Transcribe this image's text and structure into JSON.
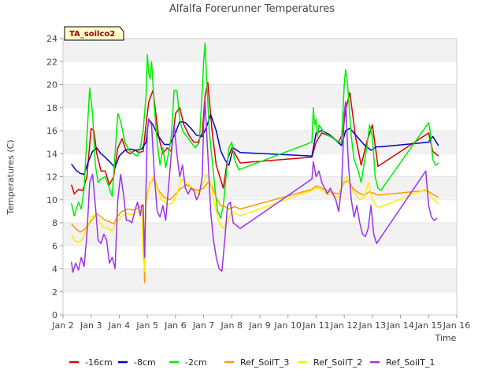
{
  "chart_data": {
    "type": "line",
    "title": "Alfalfa Forerunner Temperatures",
    "xlabel": "Time",
    "ylabel": "Temperatures (C)",
    "ylim": [
      0,
      24
    ],
    "xlim": [
      2,
      16
    ],
    "yticks": [
      0,
      2,
      4,
      6,
      8,
      10,
      12,
      14,
      16,
      18,
      20,
      22,
      24
    ],
    "xticks": [
      2,
      3,
      4,
      5,
      6,
      7,
      8,
      9,
      10,
      11,
      12,
      13,
      14,
      15,
      16
    ],
    "xticklabels": [
      "Jan 2",
      "Jan 3",
      "Jan 4",
      "Jan 5",
      "Jan 6",
      "Jan 7",
      "Jan 8",
      "Jan 9",
      "Jan 10",
      "Jan 11",
      "Jan 12",
      "Jan 13",
      "Jan 14",
      "Jan 15",
      "Jan 16"
    ],
    "grid": "horizontal-bands",
    "annotation": "TA_soilco2",
    "legend_position": "bottom",
    "series": [
      {
        "name": "-16cm",
        "color": "#dd0000",
        "x": [
          2.3,
          2.4,
          2.55,
          2.7,
          2.85,
          3.0,
          3.1,
          3.2,
          3.35,
          3.5,
          3.65,
          3.8,
          3.95,
          4.1,
          4.25,
          4.4,
          4.55,
          4.7,
          4.85,
          4.95,
          5.05,
          5.2,
          5.4,
          5.55,
          5.7,
          5.85,
          6.0,
          6.15,
          6.3,
          6.5,
          6.65,
          6.8,
          6.95,
          7.05,
          7.15,
          7.3,
          7.45,
          7.6,
          7.7,
          7.85,
          8.0,
          8.3,
          10.85,
          11.0,
          11.2,
          11.5,
          11.8,
          11.95,
          12.05,
          12.2,
          12.4,
          12.6,
          12.8,
          13.0,
          13.2,
          15.0,
          15.15,
          15.35
        ],
        "y": [
          11.3,
          10.5,
          10.9,
          10.8,
          12.0,
          16.2,
          16.0,
          14.0,
          12.5,
          12.5,
          11.3,
          12.0,
          14.5,
          15.3,
          14.2,
          14.0,
          14.3,
          14.1,
          14.2,
          16.5,
          18.5,
          19.5,
          15.5,
          14.0,
          14.5,
          14.2,
          17.5,
          18.0,
          16.5,
          15.5,
          15.0,
          15.0,
          15.8,
          19.0,
          20.2,
          16.0,
          13.0,
          11.8,
          11.0,
          13.5,
          14.5,
          13.2,
          13.7,
          15.0,
          15.8,
          15.5,
          15.0,
          15.8,
          17.8,
          19.3,
          15.5,
          13.0,
          15.0,
          16.5,
          12.9,
          15.8,
          14.2,
          13.8
        ]
      },
      {
        "name": "-8cm",
        "color": "#0000cc",
        "x": [
          2.3,
          2.45,
          2.6,
          2.75,
          2.9,
          3.05,
          3.2,
          3.35,
          3.5,
          3.7,
          3.85,
          4.0,
          4.2,
          4.4,
          4.6,
          4.8,
          4.95,
          5.05,
          5.2,
          5.4,
          5.6,
          5.8,
          6.0,
          6.15,
          6.35,
          6.55,
          6.75,
          6.95,
          7.1,
          7.25,
          7.45,
          7.6,
          7.75,
          7.9,
          8.05,
          8.3,
          10.85,
          11.0,
          11.2,
          11.45,
          11.7,
          11.9,
          12.05,
          12.2,
          12.45,
          12.7,
          12.95,
          13.15,
          13.3,
          15.0,
          15.15,
          15.35
        ],
        "y": [
          13.1,
          12.6,
          12.3,
          12.2,
          13.3,
          14.2,
          14.5,
          14.0,
          13.7,
          13.2,
          12.8,
          13.8,
          14.3,
          14.4,
          14.3,
          14.4,
          15.0,
          17.0,
          16.5,
          15.5,
          14.8,
          14.8,
          15.8,
          16.8,
          16.7,
          16.2,
          15.6,
          15.5,
          16.3,
          17.4,
          16.0,
          14.3,
          13.5,
          13.0,
          14.5,
          14.1,
          13.8,
          15.8,
          16.0,
          15.7,
          15.2,
          14.7,
          16.0,
          16.2,
          15.5,
          14.8,
          14.3,
          14.6,
          14.6,
          15.0,
          15.5,
          14.7
        ]
      },
      {
        "name": "-2cm",
        "color": "#00ee00",
        "x": [
          2.3,
          2.4,
          2.55,
          2.65,
          2.75,
          2.85,
          2.95,
          3.05,
          3.15,
          3.25,
          3.35,
          3.5,
          3.65,
          3.75,
          3.85,
          3.95,
          4.05,
          4.2,
          4.35,
          4.5,
          4.65,
          4.75,
          4.85,
          4.95,
          5.0,
          5.05,
          5.1,
          5.15,
          5.25,
          5.35,
          5.45,
          5.55,
          5.65,
          5.75,
          5.85,
          5.95,
          6.05,
          6.15,
          6.25,
          6.4,
          6.55,
          6.7,
          6.85,
          6.95,
          7.0,
          7.05,
          7.1,
          7.2,
          7.3,
          7.4,
          7.5,
          7.6,
          7.7,
          7.8,
          7.9,
          8.0,
          8.1,
          8.25,
          10.85,
          10.9,
          10.95,
          11.0,
          11.05,
          11.1,
          11.3,
          11.5,
          11.7,
          11.9,
          11.95,
          12.0,
          12.05,
          12.1,
          12.15,
          12.25,
          12.35,
          12.5,
          12.6,
          12.7,
          12.8,
          12.9,
          13.0,
          13.1,
          13.2,
          13.3,
          15.0,
          15.05,
          15.15,
          15.25,
          15.35
        ],
        "y": [
          9.7,
          8.6,
          9.8,
          9.2,
          11.0,
          15.5,
          19.7,
          17.5,
          13.0,
          11.5,
          11.8,
          12.0,
          11.0,
          10.3,
          14.0,
          17.5,
          16.8,
          15.0,
          14.3,
          14.0,
          13.8,
          14.5,
          16.0,
          19.0,
          22.6,
          21.0,
          20.5,
          22.0,
          18.0,
          15.0,
          13.0,
          14.5,
          12.8,
          14.0,
          15.5,
          19.5,
          19.5,
          17.0,
          16.0,
          15.5,
          15.0,
          14.5,
          15.0,
          19.5,
          22.0,
          23.6,
          21.0,
          16.0,
          13.5,
          11.0,
          9.0,
          8.4,
          9.5,
          12.0,
          14.5,
          15.0,
          13.5,
          12.6,
          15.0,
          18.0,
          16.5,
          17.0,
          15.5,
          16.5,
          15.8,
          15.5,
          15.2,
          14.9,
          17.5,
          20.0,
          21.3,
          20.5,
          19.0,
          15.5,
          13.5,
          12.5,
          11.5,
          13.0,
          14.5,
          16.5,
          15.5,
          12.0,
          11.0,
          10.8,
          16.7,
          16.0,
          13.5,
          13.0,
          13.2
        ]
      },
      {
        "name": "Ref_SoilT_3",
        "color": "#ff9900",
        "x": [
          2.3,
          2.45,
          2.6,
          2.75,
          2.9,
          3.05,
          3.2,
          3.35,
          3.5,
          3.65,
          3.8,
          3.95,
          4.1,
          4.3,
          4.5,
          4.7,
          4.85,
          4.9,
          4.95,
          5.0,
          5.1,
          5.25,
          5.4,
          5.6,
          5.8,
          6.0,
          6.2,
          6.4,
          6.6,
          6.8,
          7.0,
          7.15,
          7.3,
          7.45,
          7.6,
          7.75,
          7.9,
          8.1,
          8.3,
          10.85,
          11.0,
          11.2,
          11.4,
          11.6,
          11.8,
          12.0,
          12.15,
          12.3,
          12.5,
          12.7,
          12.9,
          13.2,
          14.9,
          15.0,
          15.2,
          15.35
        ],
        "y": [
          7.9,
          7.5,
          7.2,
          7.4,
          7.8,
          8.3,
          8.8,
          8.5,
          8.2,
          8.1,
          7.9,
          8.6,
          9.0,
          9.2,
          9.1,
          9.3,
          9.6,
          2.8,
          9.8,
          10.5,
          11.5,
          11.8,
          10.8,
          10.2,
          10.0,
          10.5,
          11.0,
          11.3,
          11.0,
          10.8,
          11.0,
          11.5,
          11.2,
          10.2,
          9.5,
          9.4,
          9.2,
          9.4,
          9.2,
          10.9,
          11.2,
          11.0,
          10.8,
          10.6,
          10.5,
          11.5,
          11.7,
          11.0,
          10.6,
          10.4,
          10.7,
          10.4,
          10.8,
          10.7,
          10.4,
          10.2
        ]
      },
      {
        "name": "Ref_SoilT_2",
        "color": "#ffee00",
        "x": [
          2.3,
          2.4,
          2.55,
          2.7,
          2.85,
          3.0,
          3.15,
          3.3,
          3.45,
          3.6,
          3.75,
          3.9,
          4.05,
          4.25,
          4.45,
          4.65,
          4.8,
          4.85,
          4.9,
          4.95,
          5.05,
          5.2,
          5.35,
          5.5,
          5.7,
          5.9,
          6.05,
          6.2,
          6.4,
          6.6,
          6.8,
          7.0,
          7.1,
          7.25,
          7.4,
          7.55,
          7.7,
          7.85,
          8.0,
          8.3,
          10.85,
          11.0,
          11.2,
          11.4,
          11.6,
          11.8,
          12.0,
          12.1,
          12.25,
          12.4,
          12.55,
          12.7,
          12.85,
          13.0,
          13.2,
          14.9,
          15.0,
          15.2,
          15.35
        ],
        "y": [
          7.0,
          6.5,
          6.3,
          6.6,
          7.5,
          8.5,
          8.7,
          8.0,
          7.6,
          7.5,
          7.3,
          8.0,
          8.5,
          8.8,
          8.7,
          8.9,
          9.2,
          5.0,
          3.8,
          9.5,
          11.0,
          12.0,
          11.0,
          10.0,
          9.6,
          9.7,
          10.5,
          11.8,
          11.5,
          11.0,
          10.5,
          11.5,
          12.2,
          11.5,
          9.5,
          8.0,
          7.5,
          8.0,
          9.0,
          8.6,
          10.8,
          11.0,
          10.8,
          10.5,
          10.4,
          10.2,
          11.8,
          12.0,
          11.0,
          10.5,
          10.0,
          10.2,
          11.5,
          10.0,
          9.3,
          10.9,
          10.5,
          10.0,
          9.6
        ]
      },
      {
        "name": "Ref_SoilT_1",
        "color": "#9933ee",
        "x": [
          2.3,
          2.35,
          2.45,
          2.55,
          2.65,
          2.75,
          2.85,
          2.95,
          3.05,
          3.15,
          3.25,
          3.35,
          3.45,
          3.55,
          3.65,
          3.75,
          3.85,
          3.95,
          4.05,
          4.15,
          4.25,
          4.35,
          4.45,
          4.55,
          4.65,
          4.75,
          4.8,
          4.85,
          4.9,
          4.95,
          5.0,
          5.05,
          5.15,
          5.25,
          5.35,
          5.45,
          5.55,
          5.65,
          5.75,
          5.85,
          5.95,
          6.05,
          6.15,
          6.25,
          6.35,
          6.45,
          6.55,
          6.65,
          6.75,
          6.85,
          6.95,
          7.0,
          7.05,
          7.15,
          7.25,
          7.35,
          7.45,
          7.55,
          7.65,
          7.75,
          7.85,
          7.95,
          8.05,
          8.3,
          10.85,
          10.9,
          11.0,
          11.1,
          11.2,
          11.3,
          11.4,
          11.5,
          11.6,
          11.7,
          11.8,
          11.9,
          11.95,
          12.0,
          12.05,
          12.15,
          12.25,
          12.35,
          12.45,
          12.55,
          12.65,
          12.75,
          12.85,
          12.95,
          13.05,
          13.15,
          14.9,
          15.0,
          15.1,
          15.2,
          15.3
        ],
        "y": [
          4.6,
          3.7,
          4.5,
          3.9,
          5.0,
          4.2,
          7.0,
          11.5,
          12.2,
          9.5,
          6.5,
          6.2,
          7.0,
          6.5,
          4.5,
          5.0,
          4.0,
          10.0,
          12.2,
          10.5,
          8.2,
          8.2,
          8.0,
          9.0,
          9.8,
          8.6,
          9.5,
          9.5,
          5.0,
          11.0,
          16.0,
          17.0,
          16.5,
          12.0,
          9.0,
          8.5,
          9.5,
          8.2,
          11.0,
          14.0,
          16.5,
          14.0,
          12.0,
          13.0,
          11.0,
          10.5,
          11.0,
          10.8,
          10.0,
          10.5,
          12.0,
          16.5,
          18.5,
          14.0,
          9.0,
          6.5,
          5.0,
          4.0,
          3.8,
          6.5,
          9.5,
          9.8,
          8.0,
          7.5,
          11.8,
          13.3,
          12.0,
          12.5,
          11.5,
          11.0,
          10.5,
          11.0,
          10.5,
          10.0,
          9.0,
          11.0,
          14.0,
          17.5,
          18.5,
          13.0,
          10.0,
          8.5,
          9.5,
          8.0,
          7.0,
          6.8,
          7.5,
          9.5,
          7.0,
          6.2,
          12.5,
          9.5,
          8.5,
          8.2,
          8.4
        ]
      }
    ]
  }
}
